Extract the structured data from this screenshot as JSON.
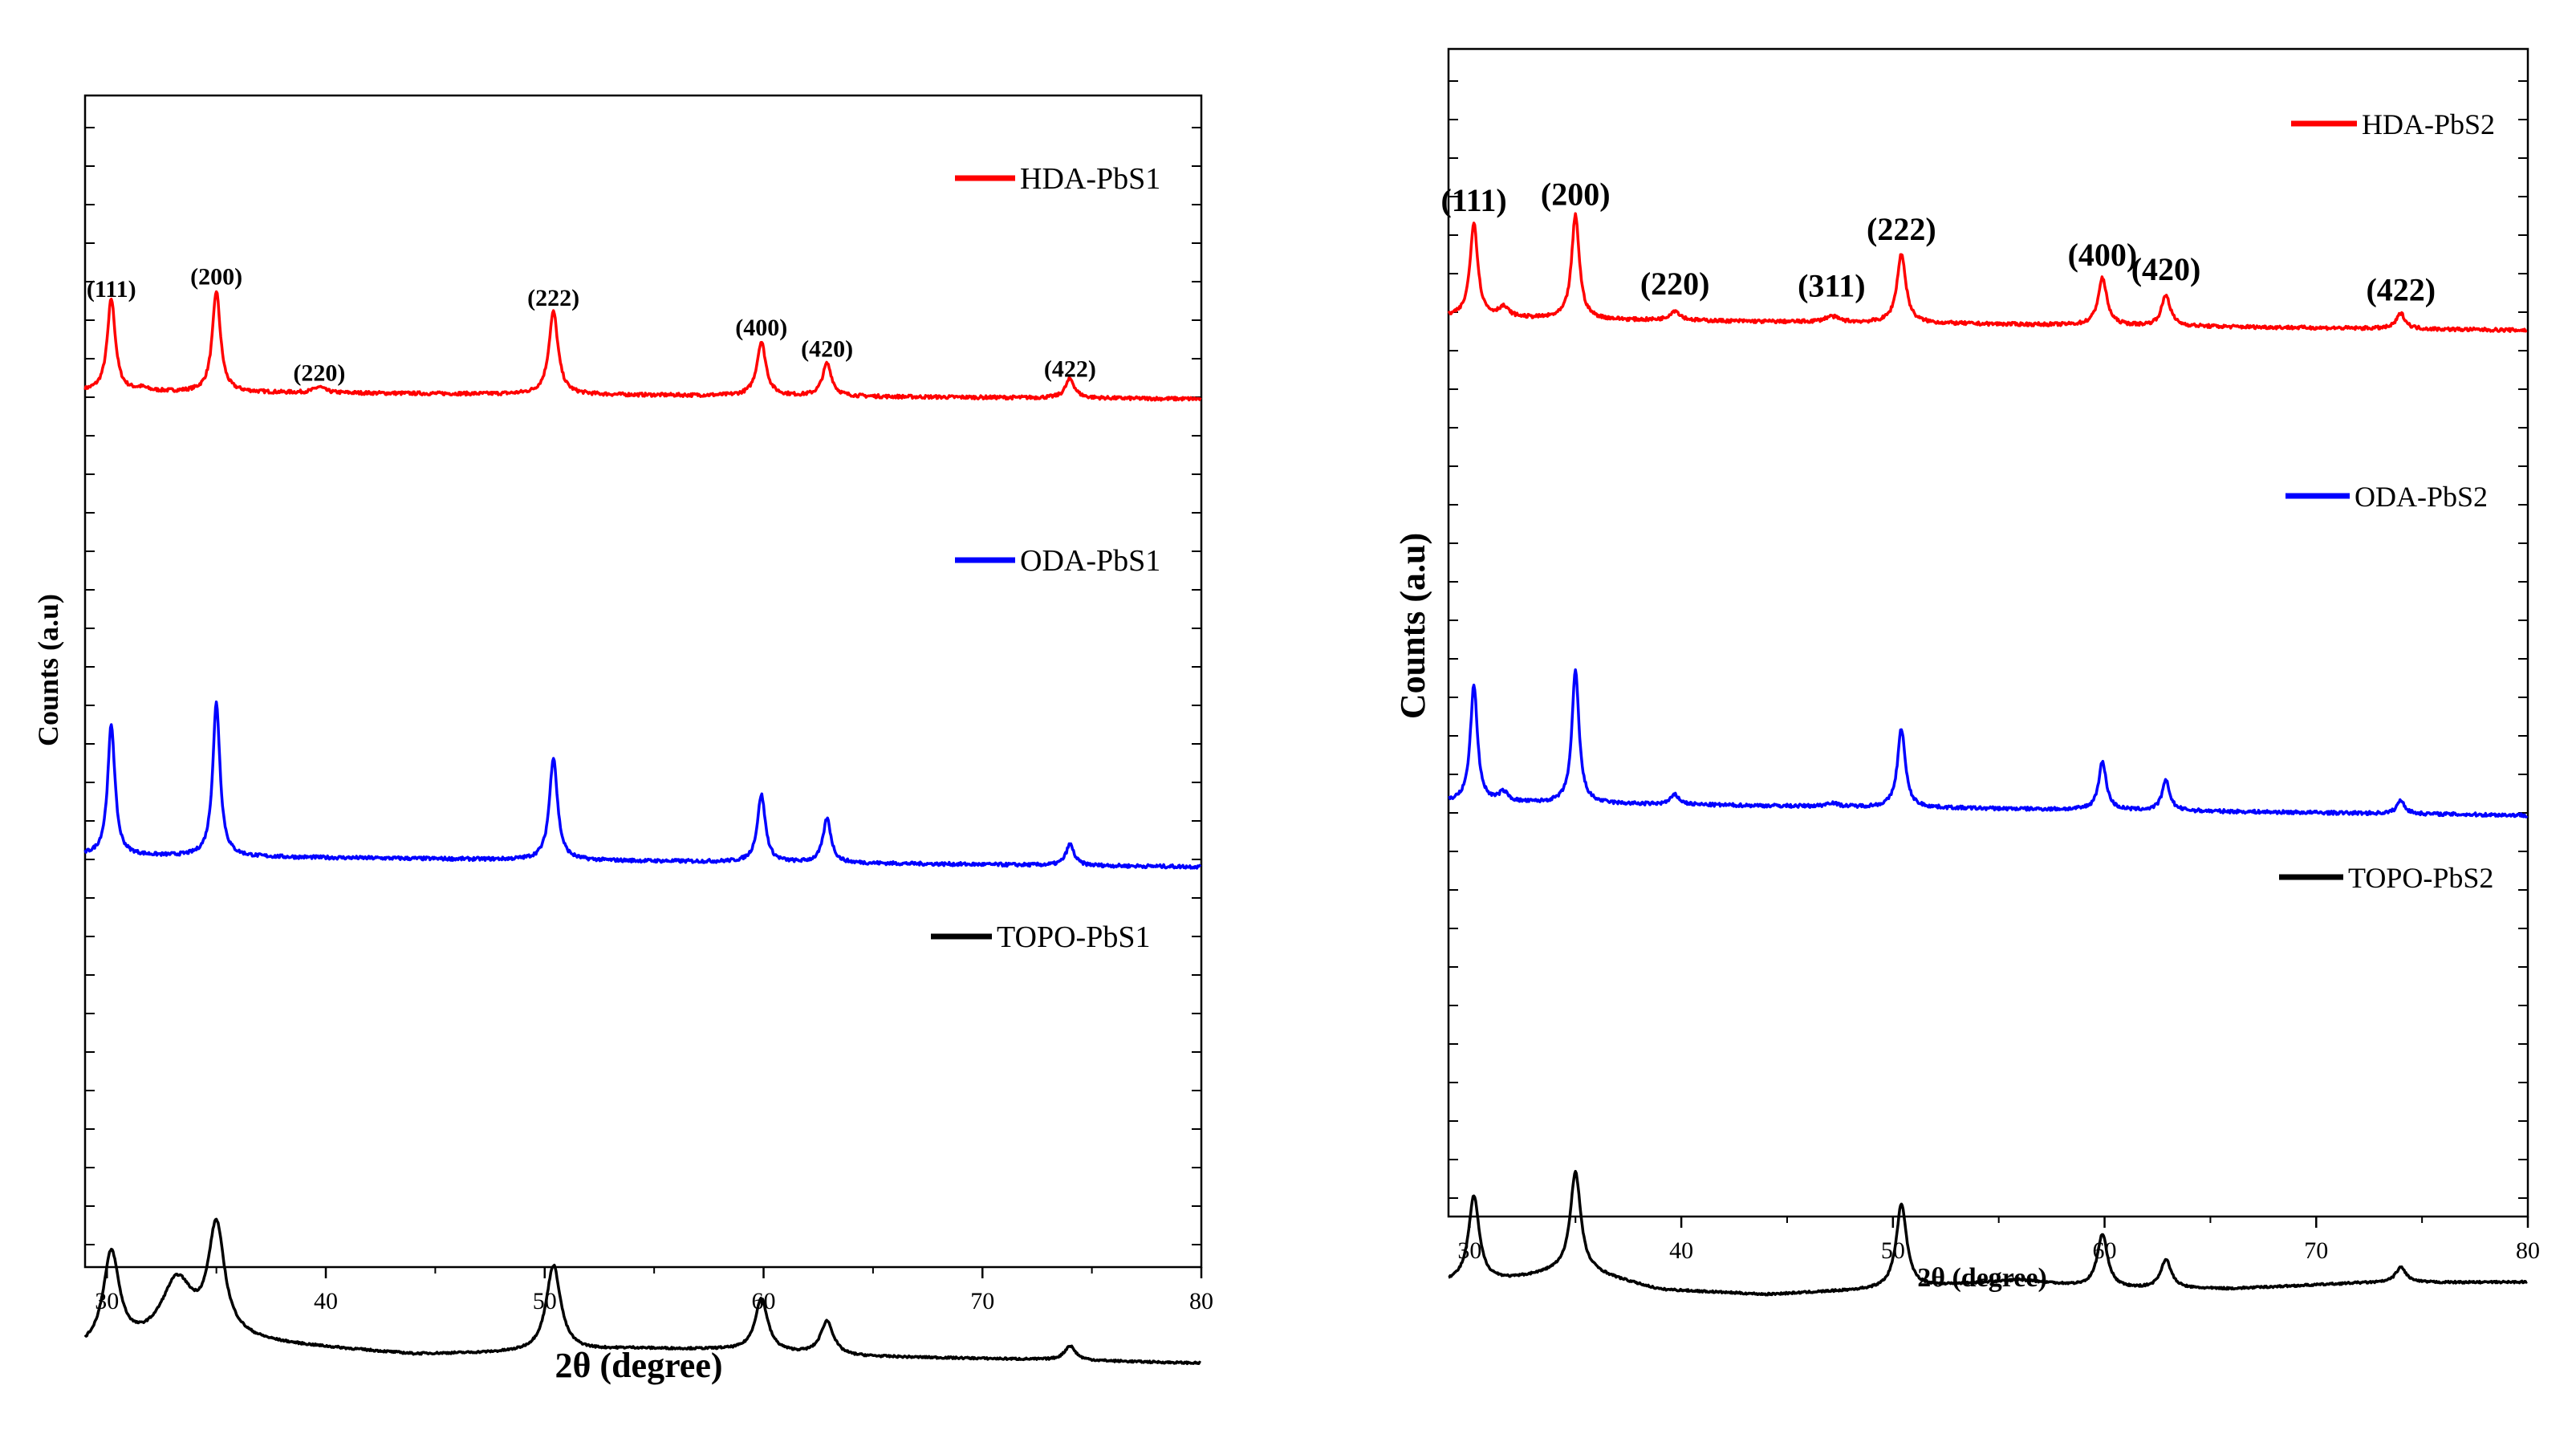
{
  "chart_data": [
    {
      "type": "line",
      "panel": "left",
      "xlabel": "2θ (degree)",
      "ylabel": "Counts (a.u)",
      "xlim": [
        29,
        80
      ],
      "xticks": [
        30,
        40,
        50,
        60,
        70,
        80
      ],
      "legend_position": "right, next to each trace",
      "series": [
        {
          "name": "HDA-PbS1",
          "color": "#ff0000",
          "baseline": [
            [
              29,
              0.87
            ],
            [
              80,
              0.79
            ]
          ],
          "peaks": [
            {
              "x": 30.2,
              "h": 0.96,
              "w": 0.22
            },
            {
              "x": 31.6,
              "h": 0.03,
              "w": 0.3
            },
            {
              "x": 35.0,
              "h": 1.05,
              "w": 0.22
            },
            {
              "x": 39.7,
              "h": 0.06,
              "w": 0.3
            },
            {
              "x": 50.4,
              "h": 0.86,
              "w": 0.25
            },
            {
              "x": 59.9,
              "h": 0.56,
              "w": 0.25
            },
            {
              "x": 62.9,
              "h": 0.34,
              "w": 0.25
            },
            {
              "x": 74.0,
              "h": 0.2,
              "w": 0.25
            }
          ]
        },
        {
          "name": "ODA-PbS1",
          "color": "#0000ff",
          "baseline": [
            [
              29,
              0.16
            ],
            [
              80,
              0.04
            ]
          ],
          "peaks": [
            {
              "x": 30.2,
              "h": 1.36,
              "w": 0.2
            },
            {
              "x": 35.0,
              "h": 1.6,
              "w": 0.2
            },
            {
              "x": 50.4,
              "h": 1.07,
              "w": 0.22
            },
            {
              "x": 59.9,
              "h": 0.7,
              "w": 0.22
            },
            {
              "x": 62.9,
              "h": 0.46,
              "w": 0.22
            },
            {
              "x": 74.0,
              "h": 0.22,
              "w": 0.22
            }
          ]
        },
        {
          "name": "TOPO-PbS1",
          "color": "#000000",
          "baseline": [
            [
              29,
              -1.37
            ],
            [
              36,
              -1.27
            ],
            [
              44,
              -1.4
            ],
            [
              50,
              -1.38
            ],
            [
              54,
              -1.34
            ],
            [
              58,
              -1.35
            ],
            [
              64,
              -1.42
            ],
            [
              72,
              -1.45
            ],
            [
              80,
              -1.49
            ]
          ],
          "peaks": [
            {
              "x": 30.2,
              "h": 0.98,
              "w": 0.45
            },
            {
              "x": 33.2,
              "h": 0.65,
              "w": 0.9
            },
            {
              "x": 35.0,
              "h": 1.15,
              "w": 0.45
            },
            {
              "x": 50.4,
              "h": 0.9,
              "w": 0.4
            },
            {
              "x": 59.9,
              "h": 0.55,
              "w": 0.35
            },
            {
              "x": 62.9,
              "h": 0.35,
              "w": 0.35
            },
            {
              "x": 74.0,
              "h": 0.15,
              "w": 0.3
            }
          ]
        }
      ],
      "annotations": [
        {
          "text": "(111)",
          "x": 30.2,
          "y": 1.85
        },
        {
          "text": "(200)",
          "x": 35.0,
          "y": 1.98
        },
        {
          "text": "(220)",
          "x": 39.7,
          "y": 0.98
        },
        {
          "text": "(222)",
          "x": 50.4,
          "y": 1.76
        },
        {
          "text": "(400)",
          "x": 59.9,
          "y": 1.45
        },
        {
          "text": "(420)",
          "x": 62.9,
          "y": 1.23
        },
        {
          "text": "(422)",
          "x": 74.0,
          "y": 1.02
        }
      ]
    },
    {
      "type": "line",
      "panel": "right",
      "xlabel": "2θ (degree)",
      "ylabel": "Counts (a.u)",
      "xlim": [
        29,
        80
      ],
      "xticks": [
        30,
        40,
        50,
        60,
        70,
        80
      ],
      "legend_position": "right, next to each trace",
      "series": [
        {
          "name": "HDA-PbS2",
          "color": "#ff0000",
          "baseline": [
            [
              29,
              0.96
            ],
            [
              36,
              0.93
            ],
            [
              80,
              0.82
            ]
          ],
          "peaks": [
            {
              "x": 30.2,
              "h": 0.98,
              "w": 0.22
            },
            {
              "x": 31.6,
              "h": 0.1,
              "w": 0.3
            },
            {
              "x": 35.0,
              "h": 1.08,
              "w": 0.22
            },
            {
              "x": 39.7,
              "h": 0.1,
              "w": 0.3
            },
            {
              "x": 47.1,
              "h": 0.06,
              "w": 0.4
            },
            {
              "x": 50.4,
              "h": 0.72,
              "w": 0.25
            },
            {
              "x": 59.9,
              "h": 0.49,
              "w": 0.25
            },
            {
              "x": 62.9,
              "h": 0.32,
              "w": 0.25
            },
            {
              "x": 74.0,
              "h": 0.16,
              "w": 0.25
            }
          ]
        },
        {
          "name": "ODA-PbS2",
          "color": "#0000ff",
          "baseline": [
            [
              29,
              0.04
            ],
            [
              36,
              0.02
            ],
            [
              80,
              -0.1
            ]
          ],
          "peaks": [
            {
              "x": 30.2,
              "h": 1.21,
              "w": 0.2
            },
            {
              "x": 31.6,
              "h": 0.1,
              "w": 0.25
            },
            {
              "x": 35.0,
              "h": 1.38,
              "w": 0.2
            },
            {
              "x": 39.7,
              "h": 0.1,
              "w": 0.25
            },
            {
              "x": 47.1,
              "h": 0.04,
              "w": 0.3
            },
            {
              "x": 50.4,
              "h": 0.82,
              "w": 0.22
            },
            {
              "x": 59.9,
              "h": 0.5,
              "w": 0.22
            },
            {
              "x": 62.9,
              "h": 0.31,
              "w": 0.22
            },
            {
              "x": 74.0,
              "h": 0.14,
              "w": 0.22
            }
          ]
        },
        {
          "name": "TOPO-PbS2",
          "color": "#000000",
          "baseline": [
            [
              29,
              -1.28
            ],
            [
              32,
              -1.25
            ],
            [
              34,
              -1.18
            ],
            [
              36,
              -1.2
            ],
            [
              39,
              -1.36
            ],
            [
              44,
              -1.41
            ],
            [
              50,
              -1.35
            ],
            [
              56,
              -1.26
            ],
            [
              60,
              -1.35
            ],
            [
              66,
              -1.35
            ],
            [
              72,
              -1.29
            ],
            [
              80,
              -1.28
            ]
          ],
          "peaks": [
            {
              "x": 30.2,
              "h": 0.88,
              "w": 0.3
            },
            {
              "x": 35.0,
              "h": 1.05,
              "w": 0.3
            },
            {
              "x": 50.4,
              "h": 0.87,
              "w": 0.3
            },
            {
              "x": 59.9,
              "h": 0.56,
              "w": 0.3
            },
            {
              "x": 62.9,
              "h": 0.3,
              "w": 0.3
            },
            {
              "x": 74.0,
              "h": 0.16,
              "w": 0.3
            }
          ]
        }
      ],
      "annotations": [
        {
          "text": "(111)",
          "x": 30.2,
          "y": 2.06
        },
        {
          "text": "(200)",
          "x": 35.0,
          "y": 2.12
        },
        {
          "text": "(220)",
          "x": 39.7,
          "y": 1.19
        },
        {
          "text": "(311)",
          "x": 47.1,
          "y": 1.17
        },
        {
          "text": "(222)",
          "x": 50.4,
          "y": 1.76
        },
        {
          "text": "(400)",
          "x": 59.9,
          "y": 1.49
        },
        {
          "text": "(420)",
          "x": 62.9,
          "y": 1.34
        },
        {
          "text": "(422)",
          "x": 74.0,
          "y": 1.13
        }
      ]
    }
  ]
}
